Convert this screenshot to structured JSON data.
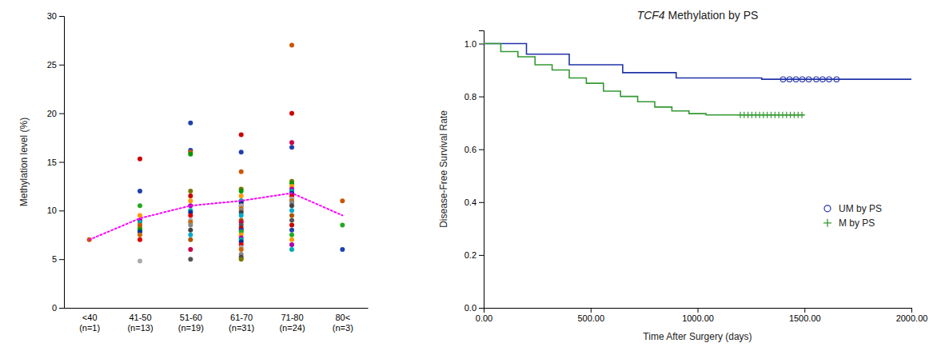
{
  "chart_data": [
    {
      "type": "scatter",
      "ylabel": "Methylation level (%)",
      "categories": [
        "<40\n(n=1)",
        "41-50\n(n=13)",
        "51-60\n(n=19)",
        "61-70\n(n=31)",
        "71-80\n(n=24)",
        "80<\n(n=3)"
      ],
      "ylim": [
        0,
        30
      ],
      "yticks": [
        0,
        5,
        10,
        15,
        20,
        25,
        30
      ],
      "series": [
        {
          "type": "scatter",
          "x": [
            "<40\n(n=1)"
          ],
          "values": [
            7.0
          ],
          "colors": [
            "#cc5500"
          ]
        },
        {
          "type": "scatter",
          "x": [
            "41-50\n(n=13)",
            "41-50\n(n=13)",
            "41-50\n(n=13)",
            "41-50\n(n=13)",
            "41-50\n(n=13)",
            "41-50\n(n=13)",
            "41-50\n(n=13)",
            "41-50\n(n=13)",
            "41-50\n(n=13)",
            "41-50\n(n=13)",
            "41-50\n(n=13)",
            "41-50\n(n=13)",
            "41-50\n(n=13)"
          ],
          "values": [
            15.3,
            12.0,
            10.5,
            9.5,
            9.0,
            8.8,
            8.5,
            8.2,
            8.0,
            7.8,
            7.5,
            7.0,
            4.8
          ],
          "colors": [
            "#cc0000",
            "#1e40af",
            "#22aa22",
            "#ff9900",
            "#aa00aa",
            "#00aaaa",
            "#cc5500",
            "#777700",
            "#009900",
            "#003399",
            "#cc6600",
            "#dd0000",
            "#aaaaaa"
          ]
        },
        {
          "type": "scatter",
          "x": [
            "51-60\n(n=19)",
            "51-60\n(n=19)",
            "51-60\n(n=19)",
            "51-60\n(n=19)",
            "51-60\n(n=19)",
            "51-60\n(n=19)",
            "51-60\n(n=19)",
            "51-60\n(n=19)",
            "51-60\n(n=19)",
            "51-60\n(n=19)",
            "51-60\n(n=19)",
            "51-60\n(n=19)",
            "51-60\n(n=19)",
            "51-60\n(n=19)",
            "51-60\n(n=19)",
            "51-60\n(n=19)",
            "51-60\n(n=19)",
            "51-60\n(n=19)",
            "51-60\n(n=19)"
          ],
          "values": [
            19.0,
            16.2,
            16.0,
            15.8,
            12.0,
            11.5,
            11.0,
            10.5,
            10.0,
            9.8,
            9.5,
            9.0,
            8.8,
            8.5,
            8.0,
            7.5,
            7.0,
            6.0,
            5.0
          ],
          "colors": [
            "#1e40af",
            "#1e40af",
            "#cc5500",
            "#009900",
            "#777700",
            "#cc0000",
            "#ff9900",
            "#aa00aa",
            "#00aaaa",
            "#003399",
            "#dd0000",
            "#aaaaaa",
            "#cc6600",
            "#888888",
            "#444444",
            "#00aacc",
            "#aa5500",
            "#cc0044",
            "#555555"
          ]
        },
        {
          "type": "scatter",
          "x": [
            "61-70\n(n=31)",
            "61-70\n(n=31)",
            "61-70\n(n=31)",
            "61-70\n(n=31)",
            "61-70\n(n=31)",
            "61-70\n(n=31)",
            "61-70\n(n=31)",
            "61-70\n(n=31)",
            "61-70\n(n=31)",
            "61-70\n(n=31)",
            "61-70\n(n=31)",
            "61-70\n(n=31)",
            "61-70\n(n=31)",
            "61-70\n(n=31)",
            "61-70\n(n=31)",
            "61-70\n(n=31)",
            "61-70\n(n=31)",
            "61-70\n(n=31)",
            "61-70\n(n=31)",
            "61-70\n(n=31)",
            "61-70\n(n=31)",
            "61-70\n(n=31)",
            "61-70\n(n=31)",
            "61-70\n(n=31)",
            "61-70\n(n=31)",
            "61-70\n(n=31)",
            "61-70\n(n=31)",
            "61-70\n(n=31)",
            "61-70\n(n=31)",
            "61-70\n(n=31)",
            "61-70\n(n=31)"
          ],
          "values": [
            17.8,
            16.0,
            14.0,
            12.2,
            12.0,
            11.5,
            11.0,
            11.0,
            10.8,
            10.5,
            10.5,
            10.2,
            10.0,
            9.8,
            9.5,
            9.0,
            8.8,
            8.5,
            8.2,
            8.0,
            7.8,
            7.5,
            7.2,
            7.0,
            6.8,
            6.5,
            6.2,
            6.0,
            5.5,
            5.2,
            5.0
          ],
          "colors": [
            "#cc0000",
            "#1e40af",
            "#cc5500",
            "#777700",
            "#009900",
            "#ff9900",
            "#aa00aa",
            "#00aaaa",
            "#003399",
            "#dd0000",
            "#aaaaaa",
            "#cc6600",
            "#888888",
            "#444444",
            "#00aacc",
            "#aa5500",
            "#cc0044",
            "#555555",
            "#cc0000",
            "#1e40af",
            "#22aa22",
            "#ff9900",
            "#aa00aa",
            "#00aaaa",
            "#003399",
            "#dd0000",
            "#aaaaaa",
            "#cc6600",
            "#888888",
            "#444444",
            "#777700"
          ]
        },
        {
          "type": "scatter",
          "x": [
            "71-80\n(n=24)",
            "71-80\n(n=24)",
            "71-80\n(n=24)",
            "71-80\n(n=24)",
            "71-80\n(n=24)",
            "71-80\n(n=24)",
            "71-80\n(n=24)",
            "71-80\n(n=24)",
            "71-80\n(n=24)",
            "71-80\n(n=24)",
            "71-80\n(n=24)",
            "71-80\n(n=24)",
            "71-80\n(n=24)",
            "71-80\n(n=24)",
            "71-80\n(n=24)",
            "71-80\n(n=24)",
            "71-80\n(n=24)",
            "71-80\n(n=24)",
            "71-80\n(n=24)",
            "71-80\n(n=24)",
            "71-80\n(n=24)",
            "71-80\n(n=24)",
            "71-80\n(n=24)",
            "71-80\n(n=24)"
          ],
          "values": [
            27.0,
            20.0,
            17.0,
            16.5,
            13.0,
            12.8,
            12.5,
            12.2,
            12.0,
            11.8,
            11.5,
            11.2,
            11.0,
            10.8,
            10.5,
            10.0,
            9.5,
            9.0,
            8.5,
            8.0,
            7.5,
            7.0,
            6.5,
            6.0
          ],
          "colors": [
            "#cc5500",
            "#cc0000",
            "#cc0044",
            "#1e40af",
            "#777700",
            "#009900",
            "#ff9900",
            "#aa00aa",
            "#00aaaa",
            "#003399",
            "#dd0000",
            "#aaaaaa",
            "#cc6600",
            "#888888",
            "#444444",
            "#00aacc",
            "#aa5500",
            "#555555",
            "#cc0000",
            "#1e40af",
            "#22aa22",
            "#ff9900",
            "#aa00aa",
            "#00aaaa"
          ]
        },
        {
          "type": "scatter",
          "x": [
            "80<\n(n=3)",
            "80<\n(n=3)",
            "80<\n(n=3)"
          ],
          "values": [
            11.0,
            8.5,
            6.0
          ],
          "colors": [
            "#cc5500",
            "#22aa22",
            "#1e40af"
          ]
        },
        {
          "type": "line",
          "color": "magenta",
          "line_style": "dotted",
          "x": [
            "<40\n(n=1)",
            "41-50\n(n=13)",
            "51-60\n(n=19)",
            "61-70\n(n=31)",
            "71-80\n(n=24)",
            "80<\n(n=3)"
          ],
          "values": [
            7.0,
            9.2,
            10.5,
            11.0,
            11.8,
            9.5
          ]
        }
      ]
    },
    {
      "type": "line",
      "title": "TCF4 Methylation by PS",
      "xlabel": "Time After Surgery (days)",
      "ylabel": "Disease-Free Survival Rate",
      "xlim": [
        0,
        2000
      ],
      "ylim": [
        0.0,
        1.05
      ],
      "xticks": [
        {
          "value": 0,
          "label": "0.00"
        },
        {
          "value": 500,
          "label": "500.00"
        },
        {
          "value": 1000,
          "label": "1000.00"
        },
        {
          "value": 1500,
          "label": "1500.00"
        },
        {
          "value": 2000,
          "label": "2000.00"
        }
      ],
      "yticks": [
        {
          "value": 0.0,
          "label": "0.0"
        },
        0.2,
        0.4,
        0.6,
        0.8,
        {
          "value": 1.0,
          "label": "1.0"
        }
      ],
      "legend": "lower right",
      "series": [
        {
          "type": "line",
          "color": "#2233aa",
          "x": [
            0,
            200,
            200,
            400,
            400,
            650,
            650,
            900,
            900,
            1050,
            1050,
            1300,
            1300,
            1380,
            1380,
            2000
          ],
          "values": [
            1.0,
            1.0,
            0.96,
            0.96,
            0.92,
            0.92,
            0.89,
            0.89,
            0.87,
            0.87,
            0.87,
            0.87,
            0.865,
            0.865,
            0.865,
            0.865
          ]
        },
        {
          "type": "line",
          "color": "#339933",
          "x": [
            0,
            80,
            80,
            160,
            160,
            240,
            240,
            320,
            320,
            400,
            400,
            480,
            480,
            560,
            560,
            640,
            640,
            720,
            720,
            800,
            800,
            880,
            880,
            960,
            960,
            1040,
            1040,
            1120,
            1120,
            1200,
            1200,
            1500
          ],
          "values": [
            1.0,
            1.0,
            0.97,
            0.97,
            0.95,
            0.95,
            0.92,
            0.92,
            0.9,
            0.9,
            0.87,
            0.87,
            0.85,
            0.85,
            0.82,
            0.82,
            0.8,
            0.8,
            0.78,
            0.78,
            0.76,
            0.76,
            0.745,
            0.745,
            0.735,
            0.735,
            0.73,
            0.73,
            0.73,
            0.73,
            0.73,
            0.73
          ]
        },
        {
          "type": "scatter",
          "name": "UM by PS",
          "color": "#2233aa",
          "marker": "circle",
          "x": [
            1400,
            1430,
            1460,
            1490,
            1520,
            1555,
            1585,
            1615,
            1650
          ],
          "values": [
            0.865,
            0.865,
            0.865,
            0.865,
            0.865,
            0.865,
            0.865,
            0.865,
            0.865
          ]
        },
        {
          "type": "scatter",
          "name": "M by PS",
          "color": "#339933",
          "marker": "plus",
          "x": [
            1200,
            1218,
            1236,
            1254,
            1272,
            1290,
            1308,
            1326,
            1344,
            1362,
            1380,
            1398,
            1416,
            1434,
            1452,
            1470,
            1488
          ],
          "values": [
            0.73,
            0.73,
            0.73,
            0.73,
            0.73,
            0.73,
            0.73,
            0.73,
            0.73,
            0.73,
            0.73,
            0.73,
            0.73,
            0.73,
            0.73,
            0.73,
            0.73
          ]
        }
      ]
    }
  ]
}
